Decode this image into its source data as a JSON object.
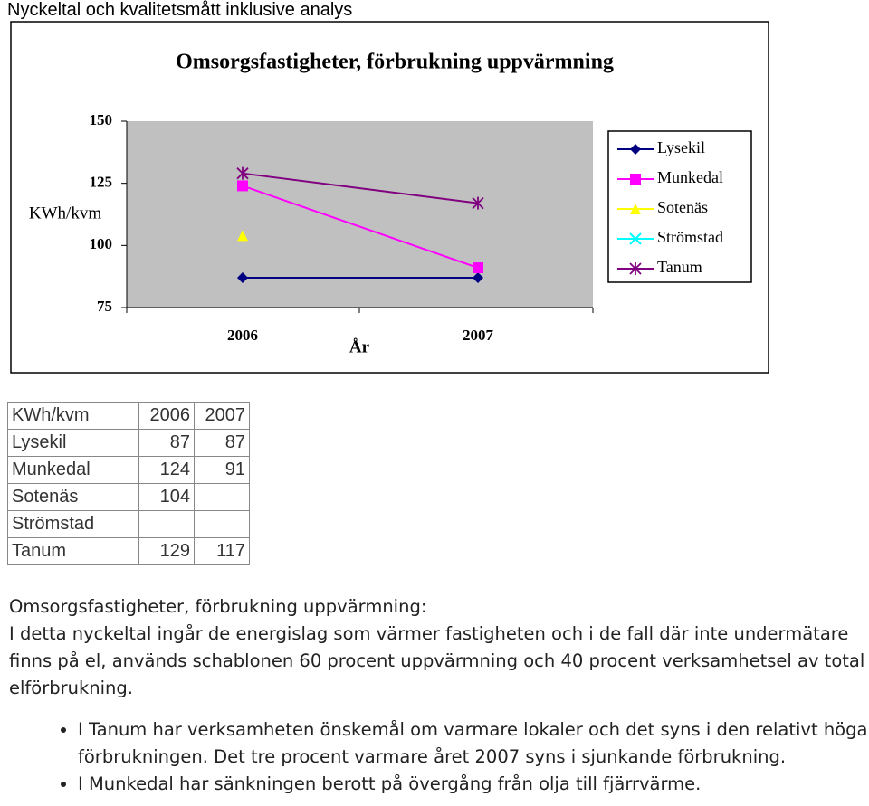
{
  "header": {
    "title": "Nyckeltal och kvalitetsmått inklusive analys"
  },
  "chart_data": {
    "type": "line",
    "title": "Omsorgsfastigheter, förbrukning uppvärmning",
    "y_label": "KWh/kvm",
    "x_label": "År",
    "categories": [
      "2006",
      "2007"
    ],
    "series": [
      {
        "name": "Lysekil",
        "color": "#000080",
        "marker": "diamond",
        "values": [
          87,
          87
        ]
      },
      {
        "name": "Munkedal",
        "color": "#ff00ff",
        "marker": "square",
        "values": [
          124,
          91
        ]
      },
      {
        "name": "Sotenäs",
        "color": "#ffff00",
        "marker": "triangle",
        "values": [
          104,
          null
        ]
      },
      {
        "name": "Strömstad",
        "color": "#00ffff",
        "marker": "x",
        "values": [
          null,
          null
        ]
      },
      {
        "name": "Tanum",
        "color": "#800080",
        "marker": "star",
        "values": [
          129,
          117
        ]
      }
    ],
    "ylim": [
      75,
      150
    ],
    "yticks": [
      75,
      100,
      125,
      150
    ],
    "plot_background": "#c0c0c0",
    "legend": "right"
  },
  "table": {
    "rows": [
      [
        "KWh/kvm",
        "2006",
        "2007"
      ],
      [
        "Lysekil",
        87,
        87
      ],
      [
        "Munkedal",
        124,
        91
      ],
      [
        "Sotenäs",
        104,
        null
      ],
      [
        "Strömstad",
        null,
        null
      ],
      [
        "Tanum",
        129,
        117
      ]
    ]
  },
  "text": {
    "heading": "Omsorgsfastigheter, förbrukning uppvärmning:",
    "paragraph": "I detta nyckeltal ingår de energislag som värmer fastigheten och i de fall där inte undermätare finns på el, används schablonen 60 procent uppvärmning och 40 procent verksamhetsel av total elförbrukning.",
    "bullets": [
      "I Tanum har verksamheten önskemål om varmare lokaler och det syns i den relativt höga förbrukningen. Det tre procent varmare året 2007 syns i sjunkande förbrukning.",
      "I Munkedal har sänkningen berott på övergång från olja till fjärrvärme."
    ]
  }
}
